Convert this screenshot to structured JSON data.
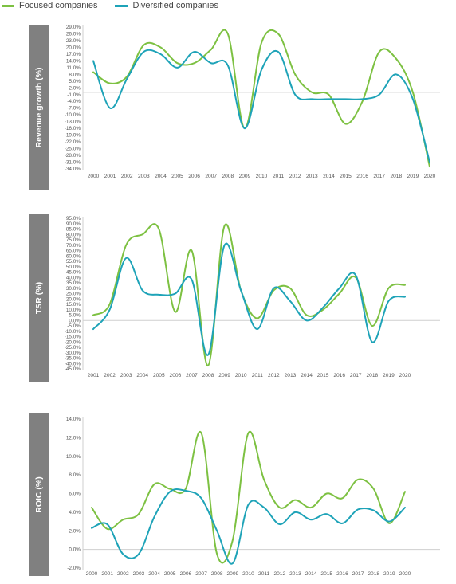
{
  "legend": {
    "focused": "Focused companies",
    "diversified": "Diversified companies"
  },
  "colors": {
    "focused": "#7dc142",
    "diversified": "#1ea3b8",
    "axis": "#cfcfcf",
    "tick": "#555555",
    "side": "#808080"
  },
  "chart_data": [
    {
      "type": "line",
      "ylabel": "Revenue growth (%)",
      "x": [
        "2000",
        "2001",
        "2002",
        "2003",
        "2004",
        "2005",
        "2006",
        "2007",
        "2008",
        "2009",
        "2010",
        "2011",
        "2012",
        "2013",
        "2014",
        "2015",
        "2016",
        "2017",
        "2018",
        "2019",
        "2020"
      ],
      "ylim": [
        -34,
        29
      ],
      "yticks": [
        29,
        26,
        23,
        20,
        17,
        14,
        11,
        8,
        5,
        2,
        -1,
        -4,
        -7,
        -10,
        -13,
        -16,
        -19,
        -22,
        -25,
        -28,
        -31,
        -34
      ],
      "ytick_labels": [
        "29.0%",
        "26.0%",
        "23.0%",
        "20.0%",
        "17.0%",
        "14.0%",
        "11.0%",
        "8.0%",
        "5.0%",
        "2.0%",
        "-1.0%",
        "-4.0%",
        "-7.0%",
        "-10.0%",
        "-13.0%",
        "-16.0%",
        "-19.0%",
        "-22.0%",
        "-25.0%",
        "-28.0%",
        "-31.0%",
        "-34.0%"
      ],
      "series": [
        {
          "name": "Focused companies",
          "values": [
            9,
            4,
            7,
            21,
            20,
            13,
            13,
            19,
            26,
            -16,
            22,
            26,
            8,
            0,
            -1,
            -14,
            -4,
            18,
            15,
            0,
            -33
          ]
        },
        {
          "name": "Diversified companies",
          "values": [
            14,
            -7,
            6,
            18,
            17,
            11,
            18,
            13,
            12,
            -16,
            10,
            18,
            -1,
            -3,
            -3,
            -3,
            -3,
            -1,
            8,
            -3,
            -31
          ]
        }
      ]
    },
    {
      "type": "line",
      "ylabel": "TSR (%)",
      "x": [
        "2001",
        "2002",
        "2003",
        "2004",
        "2005",
        "2006",
        "2007",
        "2008",
        "2009",
        "2010",
        "2011",
        "2012",
        "2013",
        "2014",
        "2015",
        "2016",
        "2017",
        "2018",
        "2019",
        "2020"
      ],
      "ylim": [
        -45,
        95
      ],
      "yticks": [
        95,
        90,
        85,
        80,
        75,
        70,
        65,
        60,
        55,
        50,
        45,
        40,
        35,
        30,
        25,
        20,
        15,
        10,
        5,
        0,
        -5,
        -10,
        -15,
        -20,
        -25,
        -30,
        -35,
        -40,
        -45
      ],
      "ytick_labels": [
        "95.0%",
        "90.0%",
        "85.0%",
        "80.0%",
        "75.0%",
        "70.0%",
        "65.0%",
        "60.0%",
        "55.0%",
        "50.0%",
        "45.0%",
        "40.0%",
        "35.0%",
        "30.0%",
        "25.0%",
        "20.0%",
        "15.0%",
        "10.0%",
        "5.0%",
        "0.0%",
        "-5.0%",
        "-10.0%",
        "-15.0%",
        "-20.0%",
        "-25.0%",
        "-30.0%",
        "-35.0%",
        "-40.0%",
        "-45.0%"
      ],
      "series": [
        {
          "name": "Focused companies",
          "values": [
            5,
            15,
            70,
            80,
            85,
            8,
            65,
            -42,
            88,
            28,
            2,
            28,
            30,
            5,
            10,
            25,
            40,
            -5,
            30,
            33
          ]
        },
        {
          "name": "Diversified companies",
          "values": [
            -8,
            10,
            58,
            28,
            24,
            25,
            38,
            -32,
            70,
            28,
            -8,
            30,
            18,
            0,
            12,
            30,
            42,
            -20,
            18,
            22
          ]
        }
      ]
    },
    {
      "type": "line",
      "ylabel": "ROIC (%)",
      "x": [
        "2000",
        "2001",
        "2002",
        "2003",
        "2004",
        "2005",
        "2006",
        "2007",
        "2008",
        "2009",
        "2010",
        "2011",
        "2012",
        "2013",
        "2014",
        "2015",
        "2016",
        "2017",
        "2018",
        "2019",
        "2020"
      ],
      "ylim": [
        -2,
        14
      ],
      "yticks": [
        14,
        12,
        10,
        8,
        6,
        4,
        2,
        0,
        -2
      ],
      "ytick_labels": [
        "14.0%",
        "12.0%",
        "10.0%",
        "8.0%",
        "6.0%",
        "4.0%",
        "2.0%",
        "0.0%",
        "-2.0%"
      ],
      "series": [
        {
          "name": "Focused companies",
          "values": [
            4.5,
            2.2,
            3.2,
            3.8,
            7.0,
            6.5,
            6.5,
            12.5,
            -0.5,
            1.0,
            12.5,
            7.5,
            4.5,
            5.3,
            4.5,
            6.0,
            5.5,
            7.5,
            6.5,
            2.8,
            6.2
          ]
        },
        {
          "name": "Diversified companies",
          "values": [
            2.3,
            2.7,
            -0.5,
            -0.5,
            3.5,
            6.2,
            6.3,
            5.5,
            2.0,
            -1.5,
            4.8,
            4.5,
            2.7,
            4.0,
            3.2,
            3.8,
            2.8,
            4.3,
            4.2,
            3.0,
            4.5
          ]
        }
      ]
    }
  ]
}
